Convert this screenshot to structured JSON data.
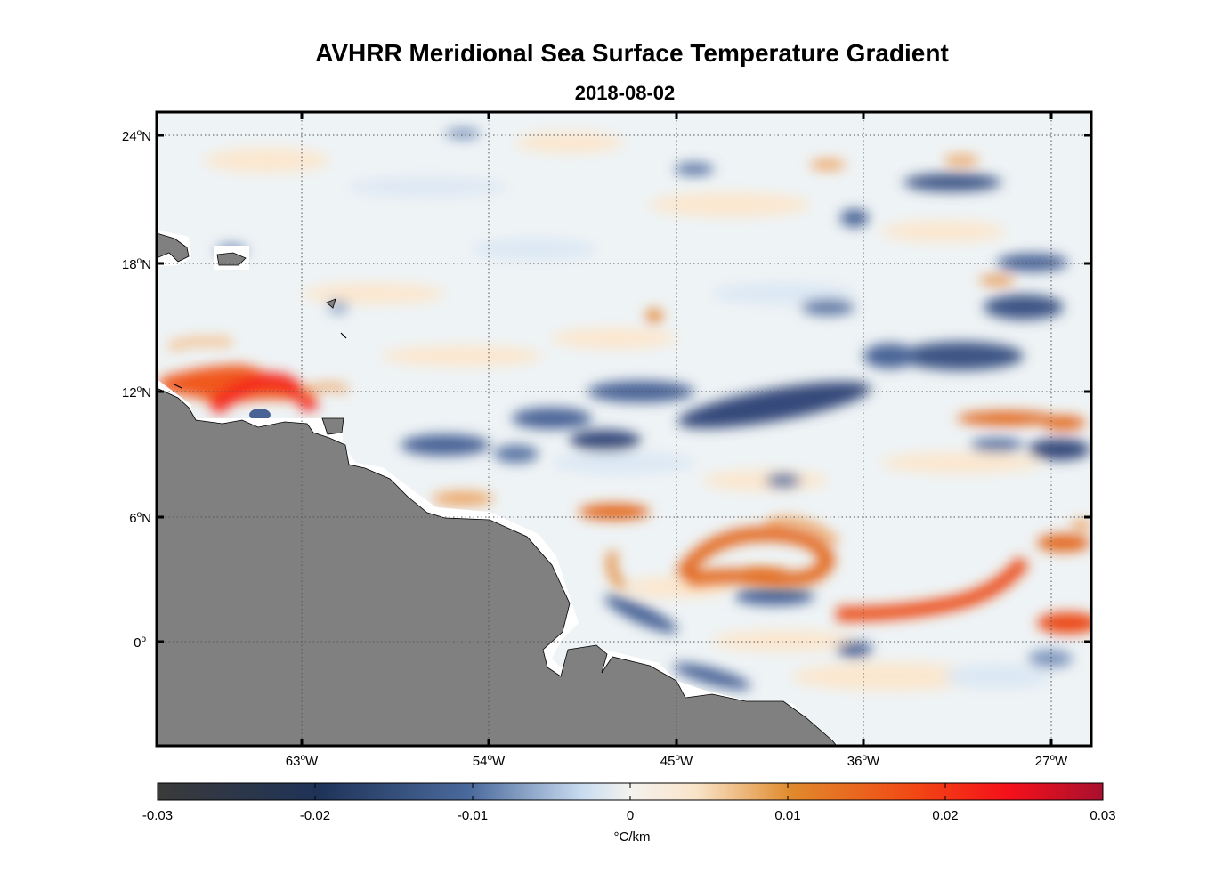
{
  "title": "AVHRR Meridional Sea Surface Temperature Gradient",
  "subtitle": "2018-08-02",
  "map": {
    "lat_ticks": [
      {
        "deg": "24",
        "hemi": "N"
      },
      {
        "deg": "18",
        "hemi": "N"
      },
      {
        "deg": "12",
        "hemi": "N"
      },
      {
        "deg": "6",
        "hemi": "N"
      },
      {
        "deg": "0",
        "hemi": ""
      }
    ],
    "lon_ticks": [
      {
        "deg": "63",
        "hemi": "W"
      },
      {
        "deg": "54",
        "hemi": "W"
      },
      {
        "deg": "45",
        "hemi": "W"
      },
      {
        "deg": "36",
        "hemi": "W"
      },
      {
        "deg": "27",
        "hemi": "W"
      }
    ],
    "land_color": "#808080",
    "grid_color": "#555555"
  },
  "colorbar": {
    "tick_labels": [
      "-0.03",
      "-0.02",
      "-0.01",
      "0",
      "0.01",
      "0.02",
      "0.03"
    ],
    "unit": "°C/km",
    "colors": [
      "#3a3a3a",
      "#1f3358",
      "#4a6a9c",
      "#c9dcf0",
      "#f4f2ee",
      "#f9e4c9",
      "#e08a2c",
      "#f24814",
      "#f5101a",
      "#a8102e"
    ]
  }
}
